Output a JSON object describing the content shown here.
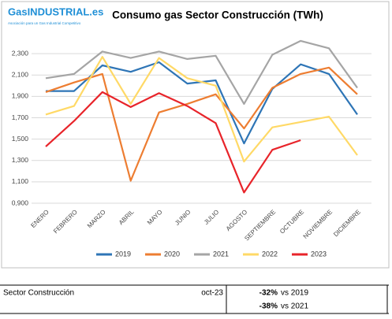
{
  "logo": {
    "name": "GasINDUSTRIAL.es",
    "tagline": "Asociación para un Gas Industrial Competitivo"
  },
  "chart_data": {
    "type": "line",
    "title": "Consumo gas Sector Construcción (TWh)",
    "categories": [
      "ENERO",
      "FEBRERO",
      "MARZO",
      "ABRIL",
      "MAYO",
      "JUNIO",
      "JULIO",
      "AGOSTO",
      "SEPTIEMBRE",
      "OCTUBRE",
      "NOVIEMBRE",
      "DICIEMBRE"
    ],
    "ylim": [
      0.9,
      2.5
    ],
    "yticks": [
      {
        "value": 0.9,
        "label": "0,900"
      },
      {
        "value": 1.1,
        "label": "1,100"
      },
      {
        "value": 1.3,
        "label": "1,300"
      },
      {
        "value": 1.5,
        "label": "1,500"
      },
      {
        "value": 1.7,
        "label": "1,700"
      },
      {
        "value": 1.9,
        "label": "1,900"
      },
      {
        "value": 2.1,
        "label": "2,100"
      },
      {
        "value": 2.3,
        "label": "2,300"
      }
    ],
    "grid": true,
    "legend": "bottom",
    "series": [
      {
        "name": "2019",
        "color": "#2e75b6",
        "values": [
          1.95,
          1.95,
          2.19,
          2.13,
          2.22,
          2.02,
          2.05,
          1.46,
          1.97,
          2.2,
          2.11,
          1.73
        ]
      },
      {
        "name": "2020",
        "color": "#ed7d31",
        "values": [
          1.94,
          2.03,
          2.11,
          1.11,
          1.75,
          1.83,
          1.92,
          1.6,
          1.98,
          2.11,
          2.17,
          1.92
        ]
      },
      {
        "name": "2021",
        "color": "#a5a5a5",
        "values": [
          2.07,
          2.11,
          2.32,
          2.26,
          2.32,
          2.25,
          2.28,
          1.83,
          2.29,
          2.42,
          2.35,
          1.98
        ]
      },
      {
        "name": "2022",
        "color": "#ffd966",
        "values": [
          1.73,
          1.81,
          2.27,
          1.83,
          2.26,
          2.07,
          2.0,
          1.29,
          1.61,
          1.66,
          1.71,
          1.35
        ]
      },
      {
        "name": "2023",
        "color": "#e8242a",
        "values": [
          1.43,
          1.67,
          1.94,
          1.8,
          1.93,
          1.81,
          1.65,
          1.0,
          1.4,
          1.49,
          null,
          null
        ]
      }
    ]
  },
  "summary": {
    "sector": "Sector Construcción",
    "period": "oct-23",
    "rows": [
      {
        "change": "-32%",
        "reference": "vs 2019"
      },
      {
        "change": "-38%",
        "reference": "vs 2021"
      }
    ]
  }
}
